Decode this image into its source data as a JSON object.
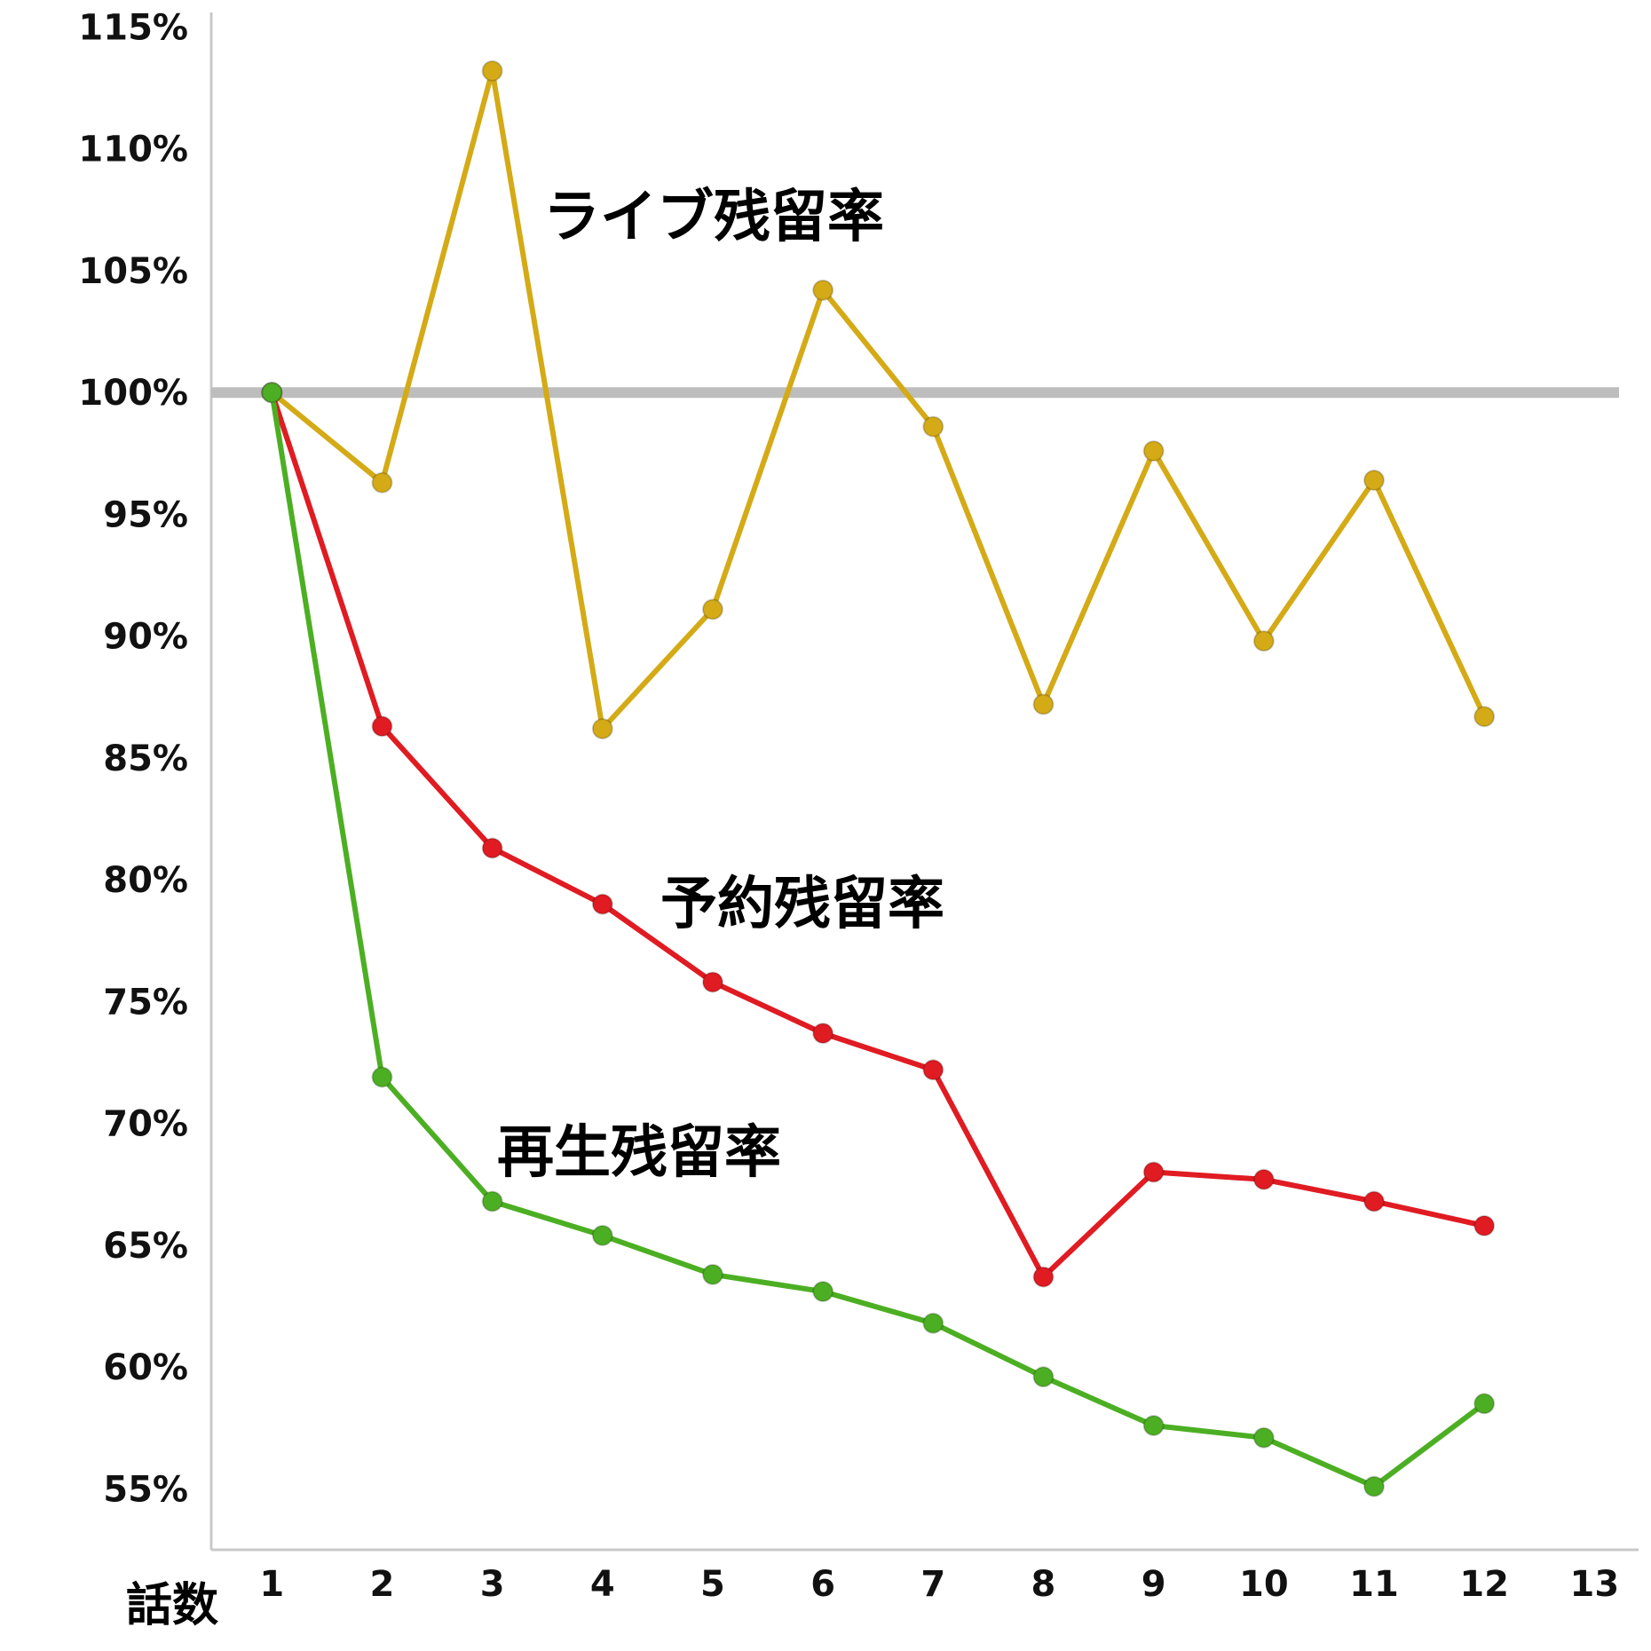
{
  "chart_data": {
    "type": "line",
    "xlabel": "話数",
    "ylabel": "",
    "x": [
      1,
      2,
      3,
      4,
      5,
      6,
      7,
      8,
      9,
      10,
      11,
      12
    ],
    "x_ticks": [
      "1",
      "2",
      "3",
      "4",
      "5",
      "6",
      "7",
      "8",
      "9",
      "10",
      "11",
      "12",
      "13"
    ],
    "xlim": [
      0.45,
      13.4
    ],
    "y_ticks": [
      "55%",
      "60%",
      "65%",
      "70%",
      "75%",
      "80%",
      "85%",
      "90%",
      "95%",
      "100%",
      "105%",
      "110%",
      "115%"
    ],
    "ylim": [
      52.5,
      115.6
    ],
    "grid": false,
    "reference_line": {
      "y": 100,
      "color": "#bdbdbd"
    },
    "series": [
      {
        "name": "ライブ残留率",
        "color": "#d4aa16",
        "values": [
          100,
          96.3,
          113.2,
          86.2,
          91.1,
          104.2,
          98.6,
          87.2,
          97.6,
          89.8,
          96.4,
          86.7
        ]
      },
      {
        "name": "予約残留率",
        "color": "#e01b22",
        "values": [
          100,
          86.3,
          81.3,
          79.0,
          75.8,
          73.7,
          72.2,
          63.7,
          68.0,
          67.7,
          66.8,
          65.8
        ]
      },
      {
        "name": "再生残留率",
        "color": "#4caf23",
        "values": [
          100,
          71.9,
          66.8,
          65.4,
          63.8,
          63.1,
          61.8,
          59.6,
          57.6,
          57.1,
          55.1,
          58.5
        ]
      }
    ]
  }
}
